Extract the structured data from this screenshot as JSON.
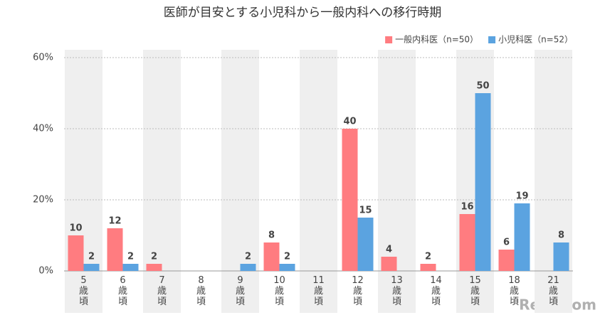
{
  "chart_data": {
    "type": "bar",
    "title": "医師が目安とする小児科から一般内科への移行時期",
    "categories": [
      "5歳頃",
      "6歳頃",
      "7歳頃",
      "8歳頃",
      "9歳頃",
      "10歳頃",
      "11歳頃",
      "12歳頃",
      "13歳頃",
      "14歳頃",
      "15歳頃",
      "18歳頃",
      "21歳頃"
    ],
    "series": [
      {
        "name": "一般内科医（n=50）",
        "color": "#ff7c80",
        "values": [
          10,
          12,
          2,
          null,
          null,
          8,
          null,
          40,
          4,
          2,
          16,
          6,
          null
        ]
      },
      {
        "name": "小児科医（n=52）",
        "color": "#5ba3e0",
        "values": [
          2,
          2,
          null,
          null,
          2,
          2,
          null,
          15,
          null,
          null,
          50,
          19,
          8
        ]
      }
    ],
    "ylim": [
      0,
      60
    ],
    "yticks": [
      {
        "value": 0,
        "label": "0%"
      },
      {
        "value": 20,
        "label": "20%"
      },
      {
        "value": 40,
        "label": "40%"
      },
      {
        "value": 60,
        "label": "60%"
      }
    ],
    "grid": true,
    "legend": "top-right",
    "watermark": "ReseMom"
  }
}
